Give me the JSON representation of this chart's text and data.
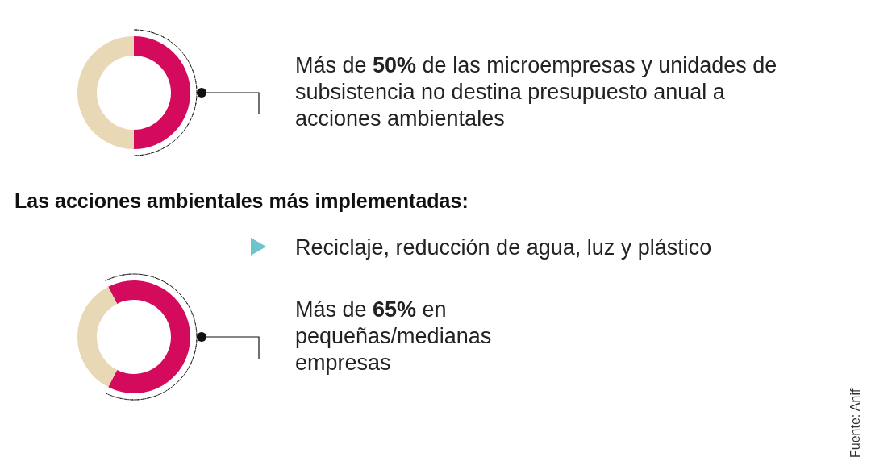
{
  "chart_data": [
    {
      "type": "donut",
      "categories": [
        null,
        null
      ],
      "values": [
        50,
        50
      ],
      "colors": [
        "#d40b5c",
        "#e8d8b5"
      ],
      "annotations": [
        "Más de 50% de las microempresas y unidades de subsistencia no destina presupuesto anual a acciones ambientales"
      ]
    },
    {
      "type": "other",
      "title": "Las acciones ambientales más implementadas:",
      "annotations": [
        "Reciclaje, reducción de agua, luz y plástico"
      ]
    },
    {
      "type": "donut",
      "categories": [
        null,
        null
      ],
      "values": [
        65,
        35
      ],
      "colors": [
        "#d40b5c",
        "#e8d8b5"
      ],
      "annotations": [
        "Más de 65% en pequeñas/medianas empresas",
        "Fuente: Anif"
      ]
    }
  ]
}
